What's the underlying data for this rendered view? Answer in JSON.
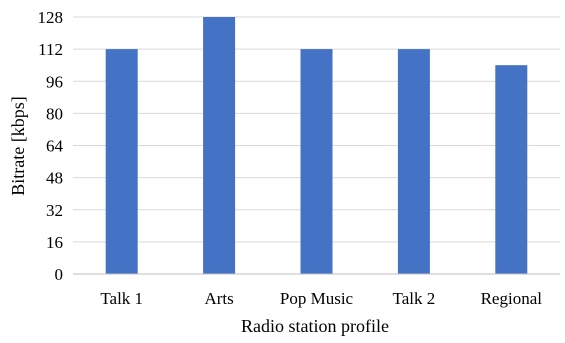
{
  "chart_data": {
    "type": "bar",
    "title": "",
    "xlabel": "Radio station profile",
    "ylabel": "Bitrate [kbps]",
    "categories": [
      "Talk 1",
      "Arts",
      "Pop Music",
      "Talk 2",
      "Regional"
    ],
    "values": [
      112,
      128,
      112,
      112,
      104
    ],
    "ylim": [
      0,
      128
    ],
    "yticks": [
      0,
      16,
      32,
      48,
      64,
      80,
      96,
      112,
      128
    ],
    "grid": true,
    "legend": "none",
    "colors": {
      "bar": "#4472C4",
      "grid": "#d9d9d9",
      "axis": "#bfbfbf",
      "text": "#000000"
    }
  }
}
